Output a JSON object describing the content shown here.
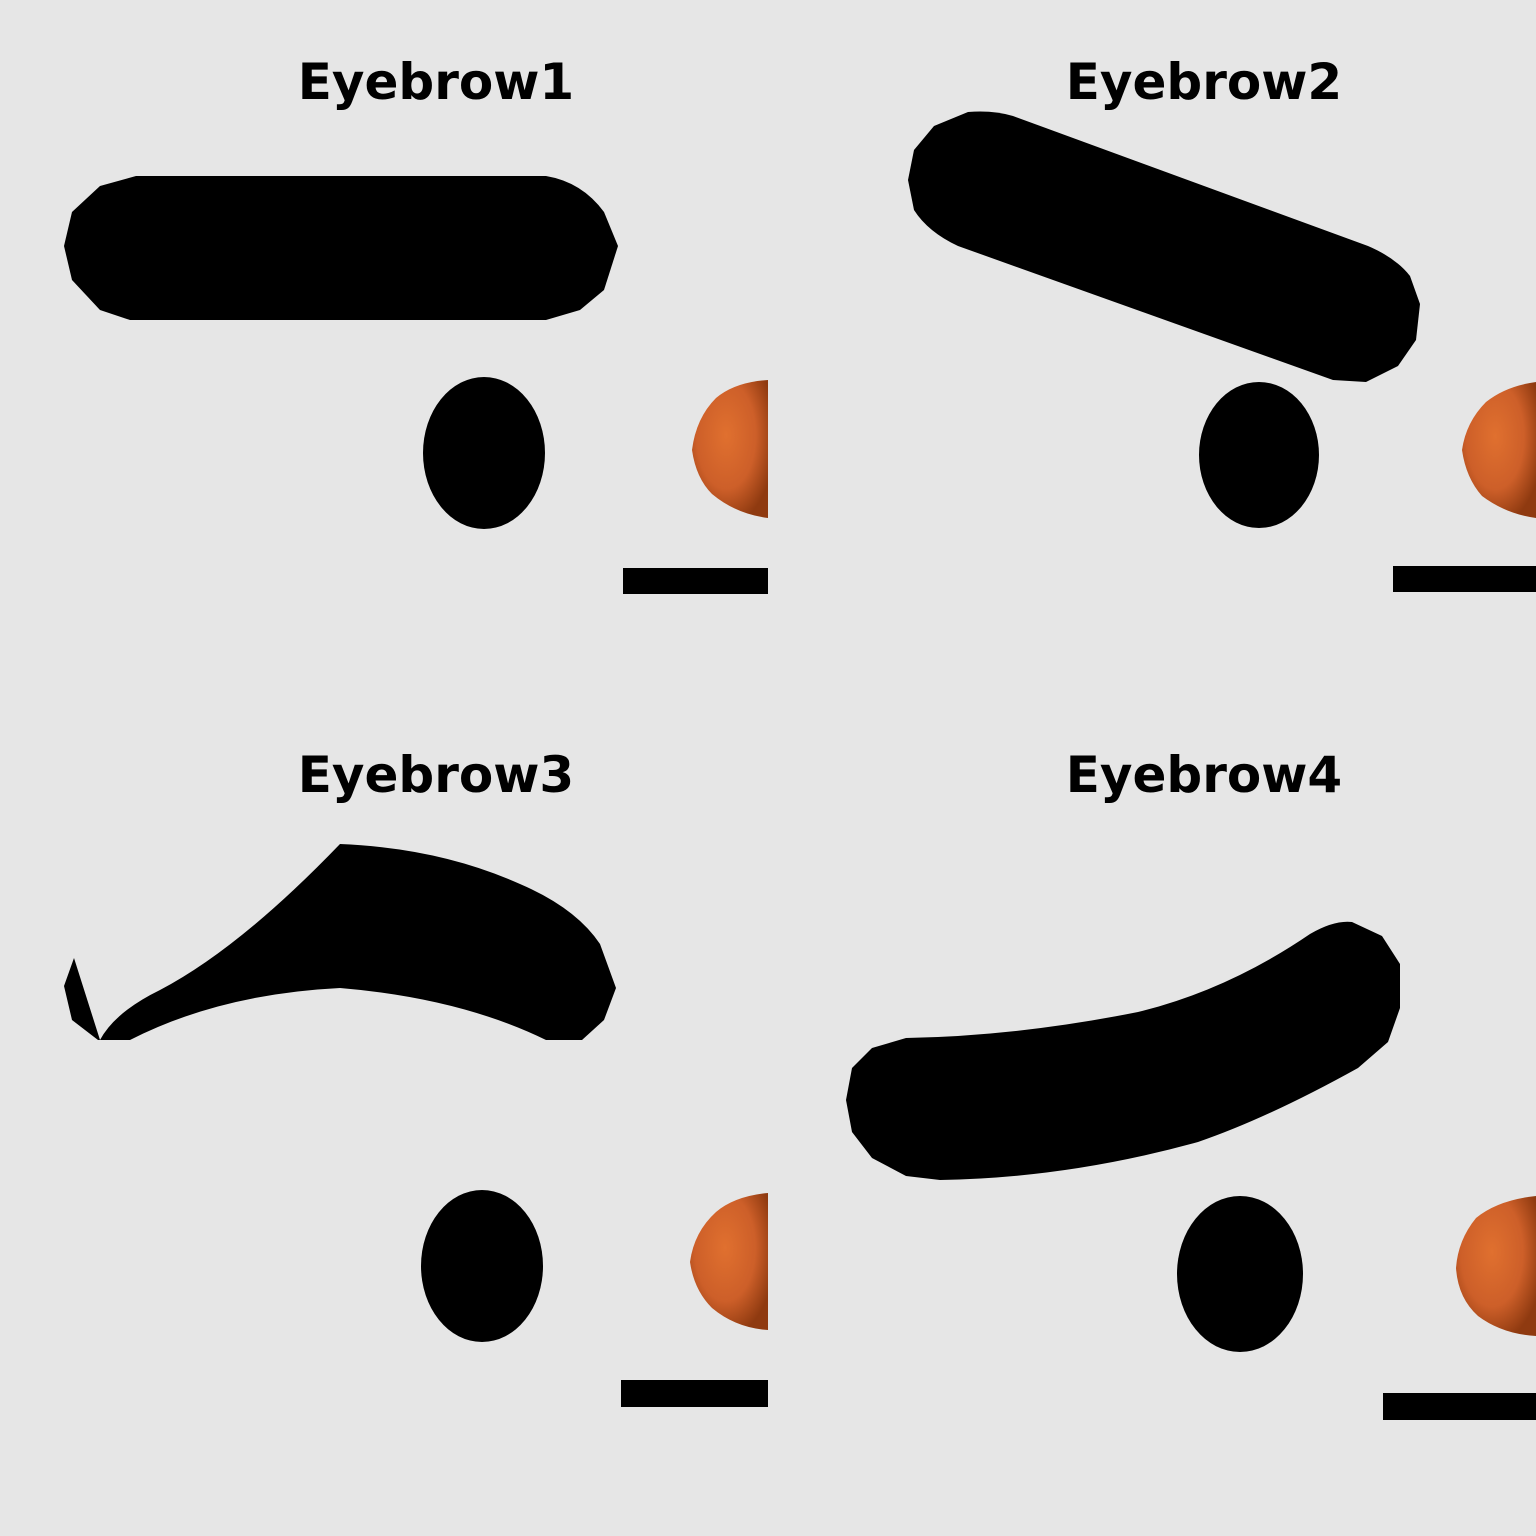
{
  "panels": [
    {
      "title": "Eyebrow1"
    },
    {
      "title": "Eyebrow2"
    },
    {
      "title": "Eyebrow3"
    },
    {
      "title": "Eyebrow4"
    }
  ],
  "colors": {
    "background": "#e6e6e6",
    "feature": "#000000",
    "nose_light": "#e0702f",
    "nose_dark": "#9a3f12"
  }
}
